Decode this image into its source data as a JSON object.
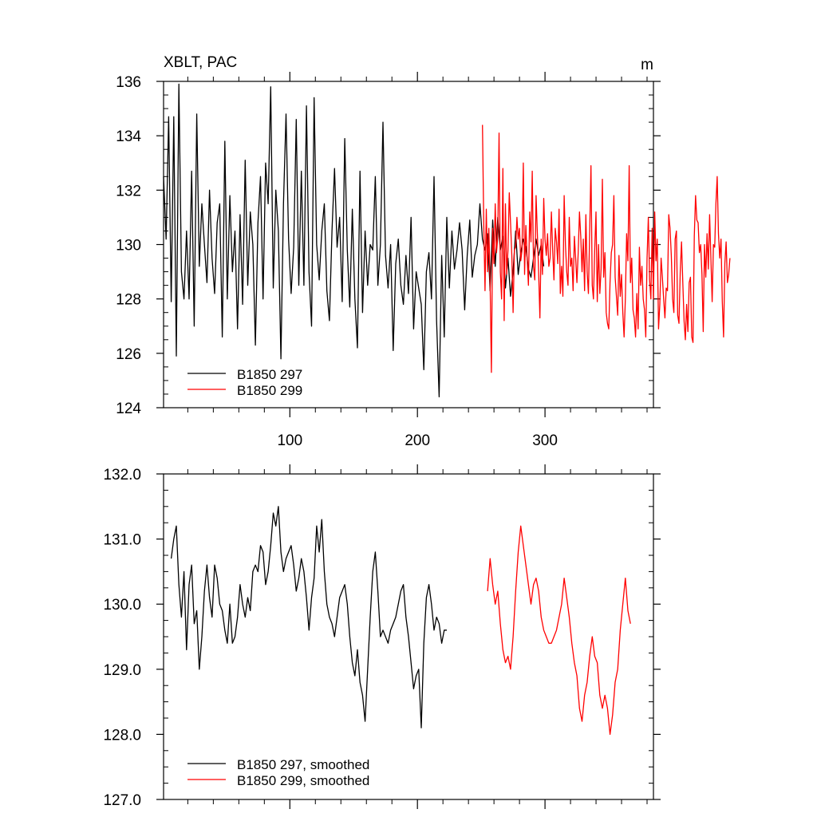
{
  "chart_data": [
    {
      "type": "line",
      "title_left": "XBLT, PAC",
      "title_right": "m",
      "xlim": [
        1,
        385
      ],
      "ylim": [
        124,
        136
      ],
      "y_ticks": [
        124,
        126,
        128,
        130,
        132,
        134,
        136
      ],
      "y_tick_labels": [
        "124",
        "126",
        "128",
        "130",
        "132",
        "134",
        "136"
      ],
      "x_ticks": [
        100,
        200,
        300
      ],
      "x_tick_labels": [
        "100",
        "200",
        "300"
      ],
      "legend_position": "bottom-left",
      "series": [
        {
          "name": "B1850 297",
          "color": "#000000",
          "x_start": 1,
          "x_step": 2,
          "values": [
            132.5,
            130.2,
            134.7,
            127.9,
            134.7,
            125.9,
            135.9,
            129.0,
            128.0,
            130.5,
            128.0,
            132.7,
            127.0,
            134.8,
            129.2,
            131.5,
            130.0,
            128.6,
            132.0,
            129.5,
            128.2,
            130.8,
            131.5,
            126.6,
            133.8,
            128.0,
            131.8,
            129.0,
            130.5,
            126.9,
            131.1,
            127.8,
            133.1,
            128.5,
            131.2,
            130.0,
            126.3,
            130.8,
            132.5,
            128.0,
            133.0,
            131.5,
            135.8,
            128.4,
            132.0,
            130.5,
            125.8,
            131.5,
            134.8,
            130.2,
            128.2,
            129.9,
            134.6,
            128.5,
            132.7,
            128.5,
            135.1,
            129.0,
            127.0,
            135.4,
            130.0,
            128.7,
            130.5,
            131.5,
            128.3,
            127.2,
            130.5,
            132.8,
            129.9,
            131.0,
            127.9,
            133.9,
            129.8,
            127.7,
            131.3,
            128.0,
            126.2,
            132.7,
            127.5,
            130.5,
            128.5,
            130.0,
            129.8,
            132.5,
            128.5,
            130.0,
            134.5,
            129.6,
            128.4,
            130.0,
            126.1,
            129.3,
            130.2,
            128.5,
            127.8,
            129.6,
            128.2,
            131.0,
            126.9,
            129.0,
            128.4,
            127.8,
            125.4,
            129.0,
            129.7,
            128.0,
            132.5,
            127.2,
            124.4,
            129.6,
            126.6,
            131.0,
            128.4,
            130.5,
            129.1,
            129.8,
            130.8,
            129.8,
            127.6,
            129.6,
            130.9,
            128.8,
            129.6,
            130.0,
            131.5,
            130.2,
            129.8,
            130.4,
            128.3,
            130.9,
            129.2,
            131.0,
            129.8,
            130.3,
            128.4,
            129.5,
            128.1,
            129.0,
            130.5,
            128.9,
            129.7,
            130.2,
            129.9,
            129.1,
            128.8,
            129.5,
            130.2,
            129.6,
            130.0,
            129.2
          ]
        },
        {
          "name": "B1850 299",
          "color": "#ff0000",
          "x_start": 251,
          "x_step": 1,
          "values": [
            134.4,
            130.8,
            128.3,
            131.3,
            129.0,
            130.6,
            128.6,
            125.3,
            130.6,
            129.3,
            131.5,
            129.7,
            130.3,
            134.1,
            129.0,
            128.0,
            132.8,
            127.2,
            131.5,
            128.9,
            129.8,
            131.9,
            130.8,
            129.6,
            127.5,
            129.8,
            129.9,
            131.0,
            130.2,
            130.6,
            129.4,
            129.8,
            133.0,
            128.9,
            130.7,
            129.5,
            128.5,
            131.2,
            130.1,
            132.7,
            129.2,
            128.7,
            131.8,
            130.4,
            129.0,
            127.3,
            130.2,
            128.9,
            131.7,
            130.2,
            129.6,
            130.4,
            129.2,
            129.5,
            131.2,
            129.8,
            128.7,
            130.6,
            130.1,
            129.3,
            131.3,
            128.2,
            129.2,
            128.1,
            131.8,
            130.0,
            129.0,
            128.5,
            131.0,
            129.2,
            129.5,
            128.3,
            130.3,
            129.5,
            128.6,
            129.7,
            131.2,
            130.3,
            129.0,
            130.2,
            128.3,
            131.1,
            129.0,
            128.2,
            130.5,
            132.9,
            128.5,
            128.0,
            129.8,
            131.2,
            127.9,
            130.0,
            128.2,
            129.1,
            132.4,
            128.8,
            129.7,
            127.5,
            127.1,
            126.9,
            128.6,
            129.7,
            130.0,
            131.8,
            128.8,
            128.1,
            127.4,
            129.6,
            128.1,
            128.9,
            127.5,
            126.6,
            128.0,
            130.4,
            129.4,
            132.9,
            128.6,
            129.5,
            127.6,
            127.3,
            126.6,
            128.2,
            126.9,
            129.9,
            128.5,
            129.2,
            128.0,
            127.6,
            126.6,
            129.5,
            131.0,
            128.7,
            128.0,
            130.6,
            128.0,
            131.2,
            129.4,
            130.2,
            126.9,
            127.8,
            129.5,
            128.8,
            128.0,
            127.3,
            128.4,
            128.3,
            131.1,
            130.6,
            129.6,
            128.0,
            127.5,
            130.2,
            130.5,
            127.4,
            127.1,
            129.0,
            130.1,
            128.6,
            127.2,
            126.5,
            127.8,
            126.8,
            128.6,
            128.8,
            126.6,
            126.4,
            130.3,
            131.8,
            130.9,
            130.8,
            129.7,
            130.0,
            128.9,
            126.8,
            130.0,
            128.8,
            130.4,
            129.1,
            131.1,
            129.5,
            127.9,
            130.0,
            129.9,
            131.5,
            132.5,
            130.4,
            129.5,
            130.2,
            127.9,
            126.6,
            129.3,
            130.1,
            128.6,
            128.9,
            129.5
          ]
        }
      ]
    },
    {
      "type": "line",
      "title_left": "",
      "title_right": "",
      "xlim": [
        1,
        385
      ],
      "ylim": [
        127.0,
        132.0
      ],
      "y_ticks": [
        127.0,
        128.0,
        129.0,
        130.0,
        131.0,
        132.0
      ],
      "y_tick_labels": [
        "127.0",
        "128.0",
        "129.0",
        "130.0",
        "131.0",
        "132.0"
      ],
      "x_ticks": [
        100,
        200,
        300
      ],
      "x_tick_labels": [],
      "legend_position": "bottom-left",
      "series": [
        {
          "name": "B1850 297, smoothed",
          "color": "#000000",
          "x_start": 7,
          "x_step": 2,
          "values": [
            130.7,
            131.0,
            131.2,
            130.3,
            129.8,
            130.5,
            129.3,
            130.3,
            130.6,
            129.7,
            129.9,
            129.0,
            129.5,
            130.2,
            130.6,
            130.1,
            129.8,
            130.6,
            130.4,
            130.0,
            129.9,
            129.6,
            129.4,
            130.0,
            129.4,
            129.5,
            129.8,
            130.3,
            130.0,
            129.8,
            130.1,
            129.9,
            130.5,
            130.6,
            130.5,
            130.9,
            130.8,
            130.3,
            130.5,
            130.9,
            131.4,
            131.2,
            131.5,
            130.8,
            130.5,
            130.7,
            130.8,
            130.9,
            130.6,
            130.2,
            130.4,
            130.7,
            130.5,
            130.1,
            129.6,
            130.1,
            130.4,
            131.2,
            130.8,
            131.3,
            130.5,
            130.0,
            129.8,
            129.7,
            129.5,
            129.8,
            130.1,
            130.2,
            130.3,
            130.0,
            129.5,
            129.1,
            128.9,
            129.3,
            128.8,
            128.6,
            128.2,
            129.0,
            129.8,
            130.5,
            130.8,
            130.2,
            129.5,
            129.6,
            129.5,
            129.4,
            129.6,
            129.7,
            129.8,
            130.0,
            130.2,
            130.3,
            129.8,
            129.5,
            129.1,
            128.7,
            128.9,
            129.0,
            128.1,
            129.4,
            130.1,
            130.3,
            130.0,
            129.6,
            129.8,
            129.7,
            129.4,
            129.6,
            129.6
          ]
        },
        {
          "name": "B1850 299, smoothed",
          "color": "#ff0000",
          "x_start": 255,
          "x_step": 2,
          "values": [
            130.2,
            130.7,
            130.3,
            130.0,
            130.2,
            129.7,
            129.3,
            129.1,
            129.2,
            129.0,
            129.5,
            130.2,
            130.8,
            131.2,
            130.9,
            130.6,
            130.3,
            130.0,
            130.3,
            130.4,
            130.2,
            129.8,
            129.6,
            129.5,
            129.4,
            129.4,
            129.5,
            129.6,
            129.8,
            130.0,
            130.4,
            130.1,
            129.8,
            129.4,
            129.1,
            128.9,
            128.4,
            128.2,
            128.6,
            128.8,
            129.2,
            129.5,
            129.2,
            129.1,
            128.6,
            128.4,
            128.6,
            128.4,
            128.0,
            128.3,
            128.8,
            129.0,
            129.6,
            130.0,
            130.4,
            129.9,
            129.7
          ]
        }
      ]
    }
  ]
}
